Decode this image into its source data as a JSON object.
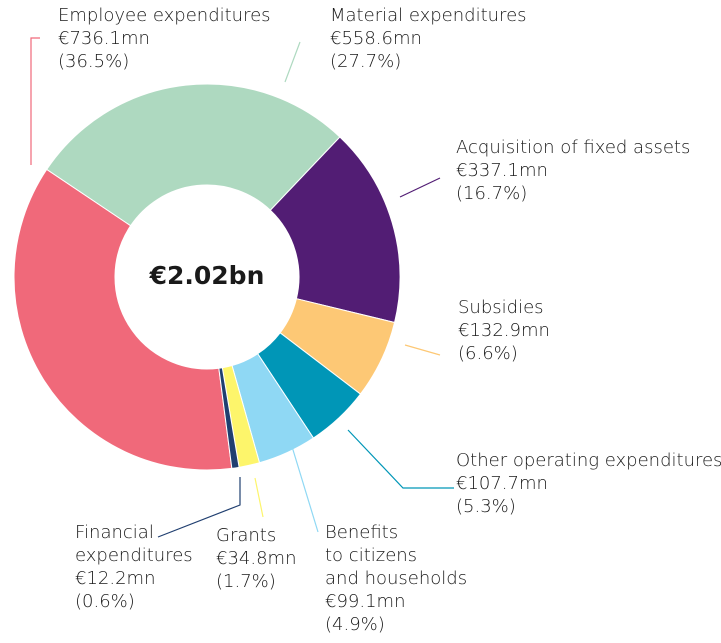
{
  "chart_data": {
    "type": "donut",
    "center_text": "€2.02bn",
    "categories": [
      "Employee expenditures",
      "Material expenditures",
      "Acquisition of fixed assets",
      "Subsidies",
      "Other operating expenditures",
      "Benefits to citizens and households",
      "Grants",
      "Financial expenditures"
    ],
    "values": [
      736.1,
      558.6,
      337.1,
      132.9,
      107.7,
      99.1,
      34.8,
      12.2
    ],
    "value_labels": [
      "€736.1mn",
      "€558.6mn",
      "€337.1mn",
      "€132.9mn",
      "€107.7mn",
      "€99.1mn",
      "€34.8mn",
      "€12.2mn"
    ],
    "shares": [
      36.5,
      27.7,
      16.7,
      6.6,
      5.3,
      4.9,
      1.7,
      0.6
    ],
    "share_labels": [
      "(36.5%)",
      "(27.7%)",
      "(16.7%)",
      "(6.6%)",
      "(5.3%)",
      "(4.9%)",
      "(1.7%)",
      "(0.6%)"
    ],
    "colors": [
      "#f0697a",
      "#aed9c0",
      "#521d74",
      "#fdc875",
      "#0096b7",
      "#8fd8f4",
      "#fdf56b",
      "#203f70"
    ]
  }
}
